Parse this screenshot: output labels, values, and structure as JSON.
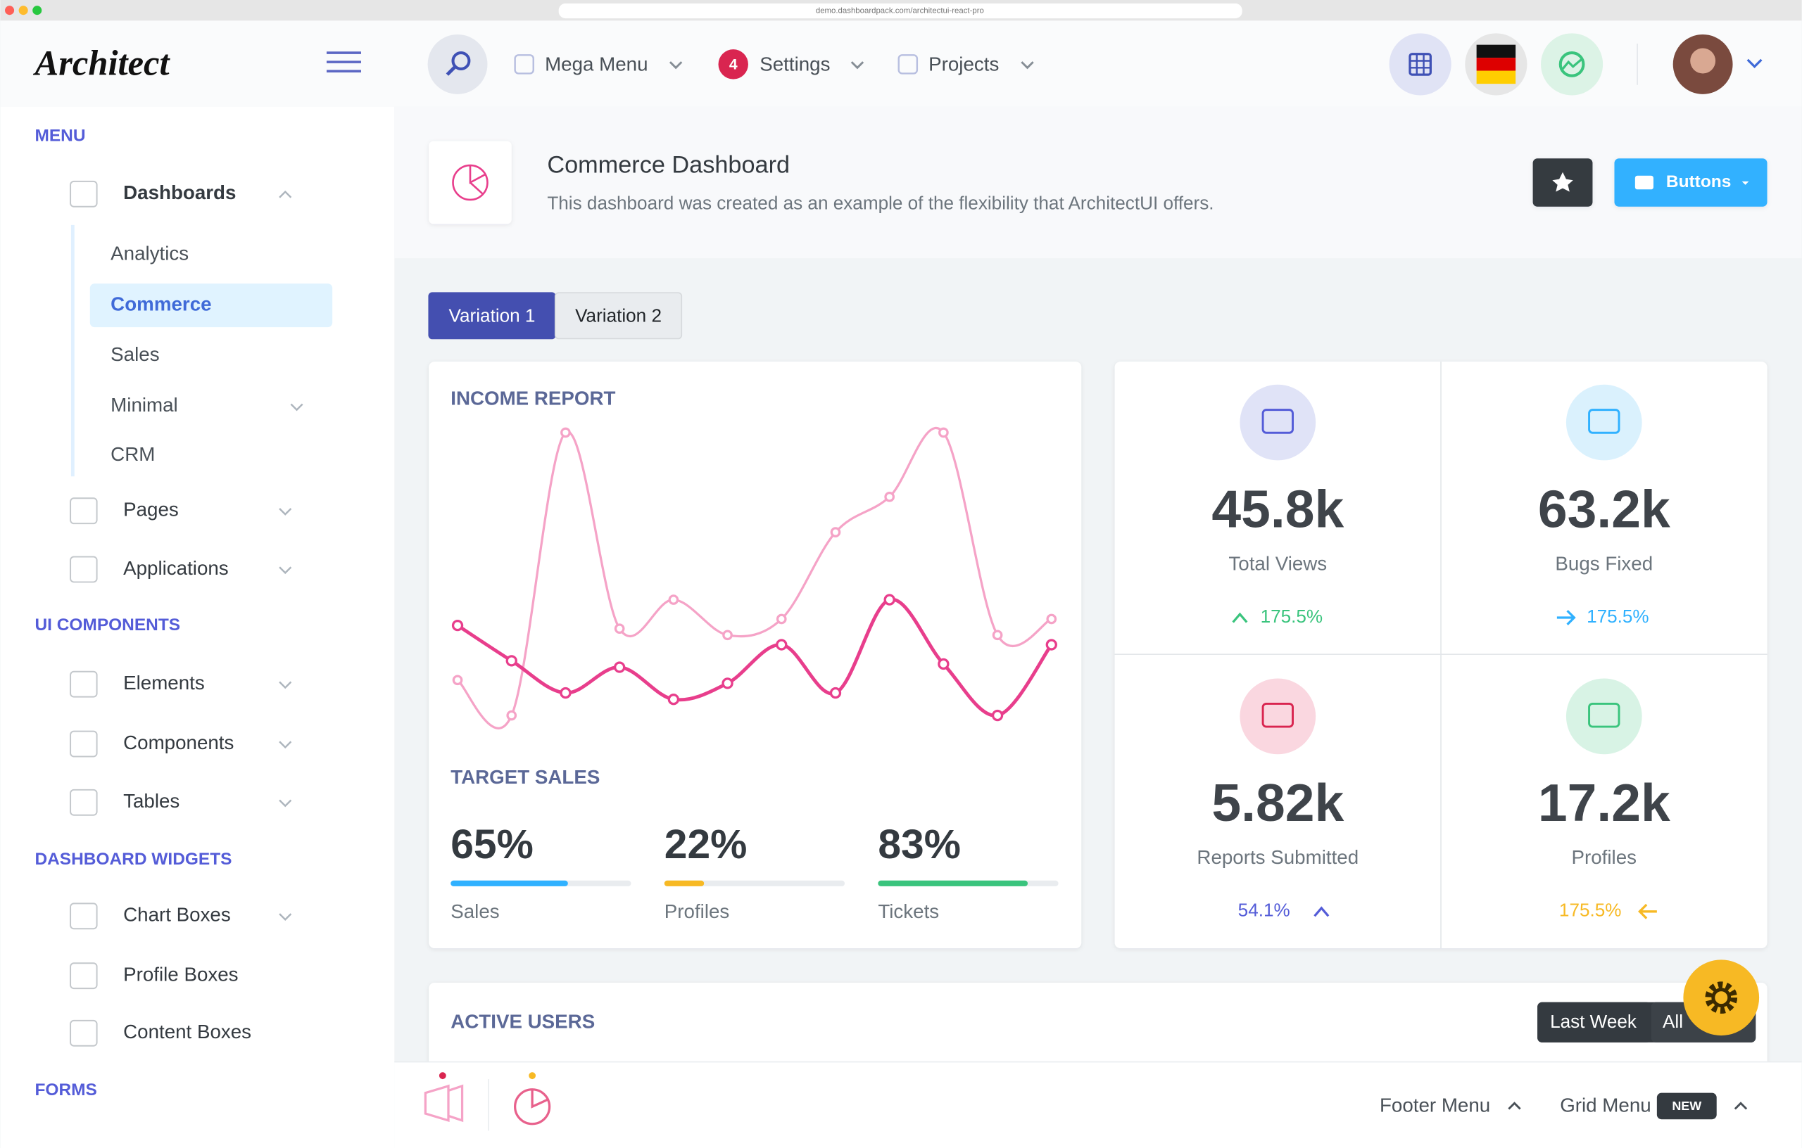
{
  "browser": {
    "url": "demo.dashboardpack.com/architectui-react-pro"
  },
  "header": {
    "logo": "Architect",
    "menus": [
      {
        "label": "Mega Menu"
      },
      {
        "badge": "4",
        "label": "Settings"
      },
      {
        "label": "Projects"
      }
    ]
  },
  "sidebar": {
    "sections": [
      {
        "title": "MENU",
        "items": [
          {
            "label": "Dashboards",
            "children": [
              "Analytics",
              "Commerce",
              "Sales",
              "Minimal",
              "CRM"
            ]
          },
          {
            "label": "Pages"
          },
          {
            "label": "Applications"
          }
        ]
      },
      {
        "title": "UI COMPONENTS",
        "items": [
          {
            "label": "Elements"
          },
          {
            "label": "Components"
          },
          {
            "label": "Tables"
          }
        ]
      },
      {
        "title": "DASHBOARD WIDGETS",
        "items": [
          {
            "label": "Chart Boxes"
          },
          {
            "label": "Profile Boxes"
          },
          {
            "label": "Content Boxes"
          }
        ]
      },
      {
        "title": "FORMS",
        "items": []
      }
    ]
  },
  "page": {
    "title": "Commerce Dashboard",
    "subtitle": "This dashboard was created as an example of the flexibility that ArchitectUI offers.",
    "button": "Buttons",
    "tabs": [
      "Variation 1",
      "Variation 2"
    ]
  },
  "chart_data": {
    "type": "line",
    "title": "INCOME REPORT",
    "ylim": [
      0,
      100
    ],
    "series": [
      {
        "color": "#f5a3c7",
        "values": [
          17,
          6,
          94,
          33,
          42,
          31,
          36,
          63,
          74,
          94,
          31,
          36
        ]
      },
      {
        "color": "#e83e8c",
        "values": [
          34,
          23,
          13,
          21,
          11,
          16,
          28,
          13,
          42,
          22,
          6,
          28
        ]
      }
    ]
  },
  "target_sales": {
    "title": "TARGET SALES",
    "items": [
      {
        "value": 65,
        "label": "65%",
        "name": "Sales",
        "color": "#30b1ff"
      },
      {
        "value": 22,
        "label": "22%",
        "name": "Profiles",
        "color": "#f7b924"
      },
      {
        "value": 83,
        "label": "83%",
        "name": "Tickets",
        "color": "#3ac47d"
      }
    ]
  },
  "stats": [
    {
      "value": "45.8k",
      "label": "Total Views",
      "change": "175.5%"
    },
    {
      "value": "63.2k",
      "label": "Bugs Fixed",
      "change": "175.5%"
    },
    {
      "value": "5.82k",
      "label": "Reports Submitted",
      "change": "54.1%"
    },
    {
      "value": "17.2k",
      "label": "Profiles",
      "change": "175.5%"
    }
  ],
  "active_users": {
    "title": "ACTIVE USERS",
    "buttons": [
      "Last Week",
      "All"
    ]
  },
  "footer": {
    "menus": [
      "Footer Menu",
      "Grid Menu"
    ],
    "badge": "NEW"
  }
}
